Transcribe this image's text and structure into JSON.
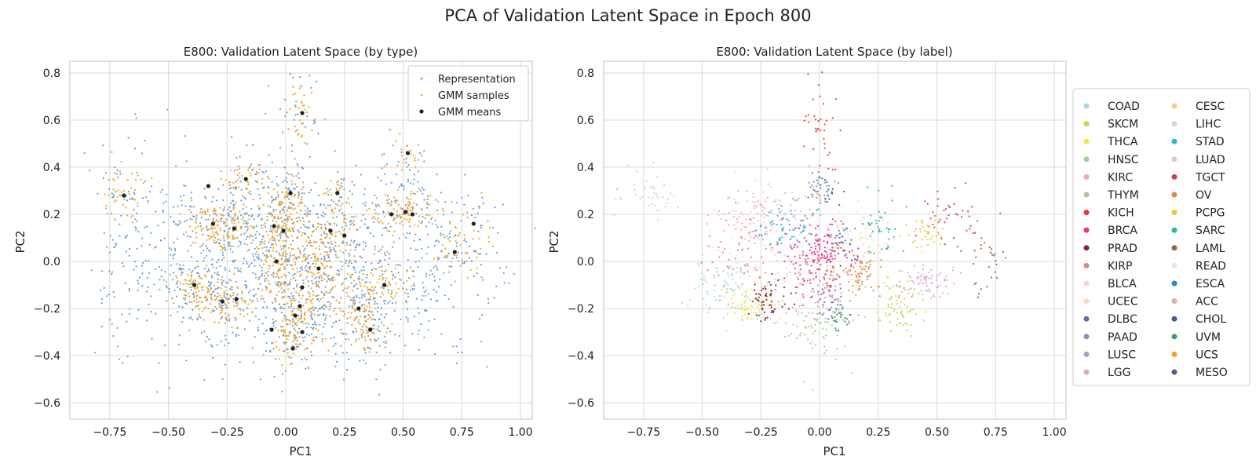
{
  "figure": {
    "suptitle": "PCA of Validation Latent Space in Epoch 800"
  },
  "colors": {
    "representation": "#4c8fd0",
    "gmm_samples": "#f5a623",
    "gmm_means": "#222222",
    "grid": "#d9d9d9",
    "frame": "#cccccc"
  },
  "chart_data": [
    {
      "type": "scatter",
      "title": "E800: Validation Latent Space (by type)",
      "xlabel": "PC1",
      "ylabel": "PC2",
      "xlim": [
        -0.92,
        1.05
      ],
      "ylim": [
        -0.67,
        0.85
      ],
      "xticks": [
        -0.75,
        -0.5,
        -0.25,
        0.0,
        0.25,
        0.5,
        0.75,
        1.0
      ],
      "xtick_labels": [
        "−0.75",
        "−0.50",
        "−0.25",
        "0.00",
        "0.25",
        "0.50",
        "0.75",
        "1.00"
      ],
      "yticks": [
        -0.6,
        -0.4,
        -0.2,
        0.0,
        0.2,
        0.4,
        0.6,
        0.8
      ],
      "ytick_labels": [
        "−0.6",
        "−0.4",
        "−0.2",
        "0.0",
        "0.2",
        "0.4",
        "0.6",
        "0.8"
      ],
      "grid": true,
      "legend_position": "top-right",
      "series": [
        {
          "name": "Representation",
          "color": "#4c8fd0",
          "marker": "small-dot",
          "approx_count": 1700,
          "x_range": [
            -0.83,
            0.96
          ],
          "y_range": [
            -0.57,
            0.77
          ]
        },
        {
          "name": "GMM samples",
          "color": "#f5a623",
          "marker": "small-dot",
          "approx_count": 1100
        },
        {
          "name": "GMM means",
          "color": "#222222",
          "marker": "dot",
          "points": [
            [
              -0.69,
              0.28
            ],
            [
              -0.33,
              0.32
            ],
            [
              -0.31,
              0.16
            ],
            [
              -0.22,
              0.14
            ],
            [
              -0.17,
              0.35
            ],
            [
              0.02,
              0.29
            ],
            [
              0.07,
              0.63
            ],
            [
              -0.05,
              0.15
            ],
            [
              -0.01,
              0.13
            ],
            [
              0.19,
              0.13
            ],
            [
              0.22,
              0.29
            ],
            [
              0.25,
              0.11
            ],
            [
              0.45,
              0.2
            ],
            [
              0.51,
              0.21
            ],
            [
              0.52,
              0.46
            ],
            [
              0.54,
              0.2
            ],
            [
              0.8,
              0.16
            ],
            [
              0.72,
              0.04
            ],
            [
              -0.04,
              0.0
            ],
            [
              0.14,
              -0.03
            ],
            [
              0.42,
              -0.1
            ],
            [
              -0.39,
              -0.1
            ],
            [
              -0.27,
              -0.17
            ],
            [
              -0.21,
              -0.16
            ],
            [
              0.07,
              -0.11
            ],
            [
              0.06,
              -0.19
            ],
            [
              0.04,
              -0.23
            ],
            [
              0.07,
              -0.3
            ],
            [
              -0.06,
              -0.29
            ],
            [
              0.03,
              -0.37
            ],
            [
              0.31,
              -0.2
            ],
            [
              0.36,
              -0.29
            ]
          ]
        }
      ],
      "clusters": [
        [
          -0.69,
          0.28,
          0.05,
          0.06,
          40
        ],
        [
          -0.32,
          0.16,
          0.07,
          0.06,
          80
        ],
        [
          -0.22,
          0.14,
          0.05,
          0.05,
          50
        ],
        [
          -0.17,
          0.34,
          0.04,
          0.05,
          40
        ],
        [
          0.02,
          0.29,
          0.04,
          0.05,
          40
        ],
        [
          0.07,
          0.63,
          0.04,
          0.06,
          30
        ],
        [
          -0.03,
          0.14,
          0.05,
          0.06,
          80
        ],
        [
          0.2,
          0.13,
          0.07,
          0.06,
          80
        ],
        [
          0.22,
          0.29,
          0.03,
          0.04,
          20
        ],
        [
          0.5,
          0.21,
          0.06,
          0.05,
          80
        ],
        [
          0.52,
          0.45,
          0.04,
          0.04,
          20
        ],
        [
          0.75,
          0.06,
          0.06,
          0.07,
          50
        ],
        [
          -0.04,
          0.0,
          0.06,
          0.08,
          100
        ],
        [
          0.14,
          -0.03,
          0.05,
          0.07,
          80
        ],
        [
          0.42,
          -0.1,
          0.07,
          0.04,
          60
        ],
        [
          -0.39,
          -0.1,
          0.05,
          0.05,
          60
        ],
        [
          -0.26,
          -0.17,
          0.06,
          0.05,
          80
        ],
        [
          0.06,
          -0.2,
          0.06,
          0.08,
          100
        ],
        [
          0.02,
          -0.34,
          0.05,
          0.05,
          40
        ],
        [
          0.32,
          -0.2,
          0.05,
          0.05,
          50
        ],
        [
          0.36,
          -0.29,
          0.04,
          0.04,
          30
        ]
      ]
    },
    {
      "type": "scatter",
      "title": "E800: Validation Latent Space (by label)",
      "xlabel": "PC1",
      "ylabel": "PC2",
      "xlim": [
        -0.92,
        1.05
      ],
      "ylim": [
        -0.67,
        0.85
      ],
      "xticks": [
        -0.75,
        -0.5,
        -0.25,
        0.0,
        0.25,
        0.5,
        0.75,
        1.0
      ],
      "xtick_labels": [
        "−0.75",
        "−0.50",
        "−0.25",
        "0.00",
        "0.25",
        "0.50",
        "0.75",
        "1.00"
      ],
      "yticks": [
        -0.6,
        -0.4,
        -0.2,
        0.0,
        0.2,
        0.4,
        0.6,
        0.8
      ],
      "ytick_labels": [
        "−0.6",
        "−0.4",
        "−0.2",
        "0.0",
        "0.2",
        "0.4",
        "0.6",
        "0.8"
      ],
      "grid": true,
      "legend_position": "outside-right",
      "series": [
        {
          "name": "COAD",
          "color": "#a6d8f0",
          "cx": -0.4,
          "cy": -0.12,
          "sx": 0.07,
          "sy": 0.06,
          "n": 90
        },
        {
          "name": "SKCM",
          "color": "#c6d84a",
          "cx": 0.34,
          "cy": -0.2,
          "sx": 0.05,
          "sy": 0.07,
          "n": 70
        },
        {
          "name": "THCA",
          "color": "#f5e642",
          "cx": -0.3,
          "cy": -0.18,
          "sx": 0.05,
          "sy": 0.04,
          "n": 70
        },
        {
          "name": "HNSC",
          "color": "#9ed39a",
          "cx": 0.02,
          "cy": -0.3,
          "sx": 0.07,
          "sy": 0.09,
          "n": 60
        },
        {
          "name": "KIRC",
          "color": "#f4a6ad",
          "cx": -0.3,
          "cy": 0.18,
          "sx": 0.07,
          "sy": 0.06,
          "n": 80
        },
        {
          "name": "THYM",
          "color": "#c9b4a0",
          "cx": -0.05,
          "cy": -0.25,
          "sx": 0.07,
          "sy": 0.07,
          "n": 30
        },
        {
          "name": "KICH",
          "color": "#e53935",
          "cx": 0.0,
          "cy": 0.55,
          "sx": 0.04,
          "sy": 0.13,
          "n": 40
        },
        {
          "name": "BRCA",
          "color": "#e8338f",
          "cx": 0.0,
          "cy": 0.0,
          "sx": 0.07,
          "sy": 0.09,
          "n": 200
        },
        {
          "name": "PRAD",
          "color": "#8b2332",
          "cx": -0.22,
          "cy": -0.16,
          "sx": 0.04,
          "sy": 0.04,
          "n": 60
        },
        {
          "name": "KIRP",
          "color": "#e88080",
          "cx": -0.33,
          "cy": 0.02,
          "sx": 0.08,
          "sy": 0.08,
          "n": 50
        },
        {
          "name": "BLCA",
          "color": "#f8d0dc",
          "cx": -0.2,
          "cy": 0.05,
          "sx": 0.12,
          "sy": 0.12,
          "n": 50
        },
        {
          "name": "UCEC",
          "color": "#fcd9bf",
          "cx": 0.2,
          "cy": 0.1,
          "sx": 0.08,
          "sy": 0.07,
          "n": 60
        },
        {
          "name": "DLBC",
          "color": "#5b6fb5",
          "cx": 0.05,
          "cy": -0.18,
          "sx": 0.03,
          "sy": 0.04,
          "n": 20
        },
        {
          "name": "PAAD",
          "color": "#8592b8",
          "cx": 0.0,
          "cy": 0.3,
          "sx": 0.03,
          "sy": 0.04,
          "n": 30
        },
        {
          "name": "LUSC",
          "color": "#b49ac8",
          "cx": 0.05,
          "cy": -0.15,
          "sx": 0.05,
          "sy": 0.05,
          "n": 40
        },
        {
          "name": "LGG",
          "color": "#dba6d0",
          "cx": 0.45,
          "cy": -0.09,
          "sx": 0.06,
          "sy": 0.03,
          "n": 80
        },
        {
          "name": "CESC",
          "color": "#f8c98a",
          "cx": 0.12,
          "cy": 0.05,
          "sx": 0.05,
          "sy": 0.06,
          "n": 30
        },
        {
          "name": "LIHC",
          "color": "#dcd0e8",
          "cx": -0.25,
          "cy": 0.25,
          "sx": 0.08,
          "sy": 0.07,
          "n": 30
        },
        {
          "name": "STAD",
          "color": "#29b6e0",
          "cx": -0.15,
          "cy": 0.14,
          "sx": 0.06,
          "sy": 0.05,
          "n": 60
        },
        {
          "name": "LUAD",
          "color": "#d8c6e6",
          "cx": -0.72,
          "cy": 0.28,
          "sx": 0.07,
          "sy": 0.06,
          "n": 40
        },
        {
          "name": "TGCT",
          "color": "#c9434f",
          "cx": 0.55,
          "cy": 0.2,
          "sx": 0.07,
          "sy": 0.06,
          "n": 40
        },
        {
          "name": "OV",
          "color": "#e08b42",
          "cx": 0.18,
          "cy": -0.05,
          "sx": 0.04,
          "sy": 0.05,
          "n": 60
        },
        {
          "name": "PCPG",
          "color": "#efc43a",
          "cx": 0.45,
          "cy": 0.12,
          "sx": 0.04,
          "sy": 0.03,
          "n": 40
        },
        {
          "name": "SARC",
          "color": "#2bb3a7",
          "cx": 0.27,
          "cy": 0.15,
          "sx": 0.04,
          "sy": 0.06,
          "n": 40
        },
        {
          "name": "LAML",
          "color": "#9c6644",
          "cx": 0.72,
          "cy": 0.0,
          "sx": 0.05,
          "sy": 0.06,
          "n": 30
        },
        {
          "name": "READ",
          "color": "#d8ecf8",
          "cx": -0.2,
          "cy": -0.05,
          "sx": 0.1,
          "sy": 0.1,
          "n": 40
        },
        {
          "name": "ESCA",
          "color": "#2e86c1",
          "cx": 0.1,
          "cy": 0.1,
          "sx": 0.05,
          "sy": 0.05,
          "n": 20
        },
        {
          "name": "ACC",
          "color": "#d9b4a6",
          "cx": -0.05,
          "cy": 0.25,
          "sx": 0.06,
          "sy": 0.06,
          "n": 20
        },
        {
          "name": "CHOL",
          "color": "#3f5f8a",
          "cx": 0.05,
          "cy": 0.3,
          "sx": 0.03,
          "sy": 0.04,
          "n": 15
        },
        {
          "name": "UVM",
          "color": "#3a9e5c",
          "cx": 0.1,
          "cy": -0.25,
          "sx": 0.03,
          "sy": 0.04,
          "n": 15
        },
        {
          "name": "UCS",
          "color": "#f29b35",
          "cx": 0.0,
          "cy": -0.05,
          "sx": 0.05,
          "sy": 0.05,
          "n": 15
        },
        {
          "name": "MESO",
          "color": "#6d4c9a",
          "cx": 0.1,
          "cy": 0.05,
          "sx": 0.05,
          "sy": 0.05,
          "n": 15
        }
      ]
    }
  ]
}
